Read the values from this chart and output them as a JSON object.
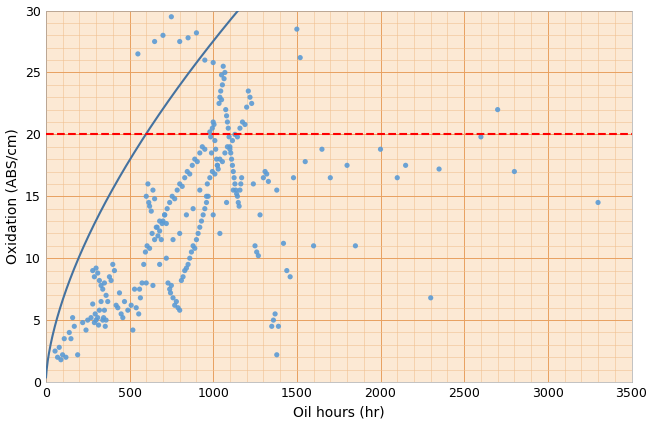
{
  "xlabel": "Oil hours (hr)",
  "ylabel": "Oxidation (ABS/cm)",
  "xlim": [
    0,
    3500
  ],
  "ylim": [
    0,
    30
  ],
  "xticks": [
    0,
    500,
    1000,
    1500,
    2000,
    2500,
    3000,
    3500
  ],
  "yticks": [
    0,
    5,
    10,
    15,
    20,
    25,
    30
  ],
  "red_line_y": 20,
  "background_color": "#fce9d4",
  "grid_major_color": "#e8a060",
  "grid_minor_color": "#f0c090",
  "scatter_color": "#5b9bd5",
  "line_color": "#4472a0",
  "scatter_size": 14,
  "curve_scale": 0.38,
  "curve_power": 0.62,
  "scatter_points": [
    [
      55,
      2.5
    ],
    [
      70,
      2.0
    ],
    [
      80,
      2.8
    ],
    [
      90,
      1.8
    ],
    [
      100,
      2.2
    ],
    [
      110,
      3.5
    ],
    [
      120,
      2.0
    ],
    [
      140,
      4.0
    ],
    [
      150,
      3.5
    ],
    [
      160,
      5.2
    ],
    [
      170,
      4.5
    ],
    [
      190,
      2.2
    ],
    [
      220,
      4.8
    ],
    [
      240,
      4.2
    ],
    [
      250,
      5.0
    ],
    [
      270,
      5.2
    ],
    [
      280,
      6.3
    ],
    [
      290,
      4.8
    ],
    [
      295,
      5.5
    ],
    [
      300,
      5.0
    ],
    [
      310,
      5.2
    ],
    [
      315,
      4.6
    ],
    [
      320,
      5.8
    ],
    [
      330,
      6.5
    ],
    [
      340,
      5.0
    ],
    [
      345,
      5.2
    ],
    [
      350,
      5.8
    ],
    [
      355,
      4.5
    ],
    [
      360,
      5.0
    ],
    [
      280,
      9.0
    ],
    [
      290,
      8.5
    ],
    [
      300,
      9.2
    ],
    [
      310,
      8.8
    ],
    [
      320,
      8.2
    ],
    [
      330,
      7.8
    ],
    [
      340,
      7.5
    ],
    [
      350,
      8.0
    ],
    [
      360,
      7.0
    ],
    [
      370,
      6.5
    ],
    [
      380,
      8.5
    ],
    [
      390,
      8.2
    ],
    [
      400,
      9.5
    ],
    [
      410,
      9.0
    ],
    [
      420,
      6.2
    ],
    [
      430,
      6.0
    ],
    [
      440,
      7.2
    ],
    [
      450,
      5.5
    ],
    [
      460,
      5.2
    ],
    [
      550,
      26.5
    ],
    [
      600,
      15.0
    ],
    [
      610,
      16.0
    ],
    [
      615,
      14.5
    ],
    [
      620,
      14.2
    ],
    [
      630,
      13.8
    ],
    [
      640,
      15.5
    ],
    [
      650,
      14.8
    ],
    [
      660,
      12.5
    ],
    [
      670,
      11.8
    ],
    [
      680,
      12.2
    ],
    [
      690,
      11.5
    ],
    [
      700,
      13.0
    ],
    [
      710,
      13.5
    ],
    [
      720,
      12.8
    ],
    [
      730,
      8.0
    ],
    [
      740,
      7.5
    ],
    [
      745,
      7.2
    ],
    [
      750,
      7.8
    ],
    [
      760,
      6.8
    ],
    [
      770,
      6.2
    ],
    [
      780,
      6.5
    ],
    [
      790,
      6.0
    ],
    [
      800,
      5.8
    ],
    [
      810,
      8.2
    ],
    [
      820,
      8.5
    ],
    [
      830,
      9.0
    ],
    [
      840,
      9.2
    ],
    [
      850,
      9.5
    ],
    [
      860,
      10.0
    ],
    [
      870,
      10.5
    ],
    [
      880,
      11.0
    ],
    [
      890,
      10.8
    ],
    [
      900,
      11.5
    ],
    [
      910,
      12.0
    ],
    [
      920,
      12.5
    ],
    [
      930,
      13.0
    ],
    [
      940,
      13.5
    ],
    [
      950,
      14.0
    ],
    [
      960,
      14.5
    ],
    [
      970,
      15.0
    ],
    [
      980,
      20.2
    ],
    [
      985,
      19.8
    ],
    [
      990,
      18.5
    ],
    [
      995,
      20.5
    ],
    [
      1000,
      21.0
    ],
    [
      1005,
      20.8
    ],
    [
      1010,
      19.5
    ],
    [
      1015,
      18.8
    ],
    [
      1020,
      18.0
    ],
    [
      1025,
      17.5
    ],
    [
      1030,
      17.2
    ],
    [
      1035,
      22.5
    ],
    [
      1040,
      23.0
    ],
    [
      1045,
      23.5
    ],
    [
      1050,
      22.8
    ],
    [
      1055,
      24.0
    ],
    [
      1060,
      25.5
    ],
    [
      1065,
      24.5
    ],
    [
      1070,
      25.0
    ],
    [
      1075,
      22.0
    ],
    [
      1080,
      21.5
    ],
    [
      1085,
      21.0
    ],
    [
      1090,
      20.5
    ],
    [
      1095,
      19.8
    ],
    [
      1100,
      19.0
    ],
    [
      1105,
      18.5
    ],
    [
      1110,
      18.0
    ],
    [
      1115,
      17.5
    ],
    [
      1120,
      17.0
    ],
    [
      1125,
      16.5
    ],
    [
      1130,
      16.0
    ],
    [
      1135,
      15.5
    ],
    [
      1140,
      15.2
    ],
    [
      1145,
      15.0
    ],
    [
      1150,
      14.5
    ],
    [
      1155,
      14.2
    ],
    [
      1160,
      15.5
    ],
    [
      1165,
      16.0
    ],
    [
      1170,
      16.5
    ],
    [
      1200,
      22.2
    ],
    [
      1210,
      23.5
    ],
    [
      1220,
      23.0
    ],
    [
      1230,
      22.5
    ],
    [
      1250,
      11.0
    ],
    [
      1260,
      10.5
    ],
    [
      1270,
      10.2
    ],
    [
      1300,
      16.5
    ],
    [
      1310,
      17.0
    ],
    [
      1320,
      16.8
    ],
    [
      1350,
      4.5
    ],
    [
      1360,
      5.0
    ],
    [
      1370,
      5.5
    ],
    [
      1380,
      2.2
    ],
    [
      1390,
      4.5
    ],
    [
      1420,
      11.2
    ],
    [
      1440,
      9.0
    ],
    [
      1460,
      8.5
    ],
    [
      1480,
      16.5
    ],
    [
      1500,
      28.5
    ],
    [
      1520,
      26.2
    ],
    [
      1550,
      17.8
    ],
    [
      1600,
      11.0
    ],
    [
      1650,
      18.8
    ],
    [
      1700,
      16.5
    ],
    [
      1800,
      17.5
    ],
    [
      1850,
      11.0
    ],
    [
      2000,
      18.8
    ],
    [
      2100,
      16.5
    ],
    [
      2150,
      17.5
    ],
    [
      2300,
      6.8
    ],
    [
      2350,
      17.2
    ],
    [
      2600,
      19.8
    ],
    [
      2700,
      22.0
    ],
    [
      2800,
      17.0
    ],
    [
      3300,
      14.5
    ],
    [
      650,
      27.5
    ],
    [
      700,
      28.0
    ],
    [
      750,
      29.5
    ],
    [
      800,
      27.5
    ],
    [
      850,
      27.8
    ],
    [
      900,
      28.2
    ],
    [
      950,
      26.0
    ],
    [
      1000,
      25.8
    ],
    [
      1050,
      24.8
    ],
    [
      470,
      6.5
    ],
    [
      490,
      5.8
    ],
    [
      510,
      6.2
    ],
    [
      520,
      4.2
    ],
    [
      530,
      7.5
    ],
    [
      540,
      6.0
    ],
    [
      555,
      5.5
    ],
    [
      565,
      6.8
    ],
    [
      575,
      8.0
    ],
    [
      585,
      9.5
    ],
    [
      595,
      10.5
    ],
    [
      605,
      11.0
    ],
    [
      620,
      10.8
    ],
    [
      635,
      12.0
    ],
    [
      650,
      11.5
    ],
    [
      665,
      12.5
    ],
    [
      680,
      13.0
    ],
    [
      695,
      12.8
    ],
    [
      710,
      13.5
    ],
    [
      725,
      14.0
    ],
    [
      740,
      14.5
    ],
    [
      755,
      15.0
    ],
    [
      770,
      14.8
    ],
    [
      785,
      15.5
    ],
    [
      800,
      16.0
    ],
    [
      815,
      15.8
    ],
    [
      830,
      16.5
    ],
    [
      845,
      17.0
    ],
    [
      860,
      16.8
    ],
    [
      875,
      17.5
    ],
    [
      890,
      18.0
    ],
    [
      905,
      17.8
    ],
    [
      920,
      18.5
    ],
    [
      935,
      19.0
    ],
    [
      950,
      18.8
    ],
    [
      965,
      16.0
    ],
    [
      980,
      16.5
    ],
    [
      995,
      17.0
    ],
    [
      1010,
      16.8
    ],
    [
      1025,
      17.5
    ],
    [
      1040,
      18.0
    ],
    [
      1055,
      17.8
    ],
    [
      1070,
      18.5
    ],
    [
      1085,
      19.0
    ],
    [
      1100,
      18.8
    ],
    [
      1115,
      19.5
    ],
    [
      1130,
      20.0
    ],
    [
      1145,
      19.8
    ],
    [
      1160,
      20.5
    ],
    [
      1175,
      21.0
    ],
    [
      1190,
      20.8
    ],
    [
      1240,
      16.0
    ],
    [
      1280,
      13.5
    ],
    [
      1330,
      16.2
    ],
    [
      1380,
      15.5
    ],
    [
      560,
      7.5
    ],
    [
      600,
      8.0
    ],
    [
      640,
      7.8
    ],
    [
      680,
      9.5
    ],
    [
      720,
      10.0
    ],
    [
      760,
      11.5
    ],
    [
      800,
      12.0
    ],
    [
      840,
      13.5
    ],
    [
      880,
      14.0
    ],
    [
      920,
      15.5
    ],
    [
      960,
      15.0
    ],
    [
      1000,
      13.5
    ],
    [
      1040,
      12.0
    ],
    [
      1080,
      14.5
    ],
    [
      1120,
      15.5
    ]
  ]
}
